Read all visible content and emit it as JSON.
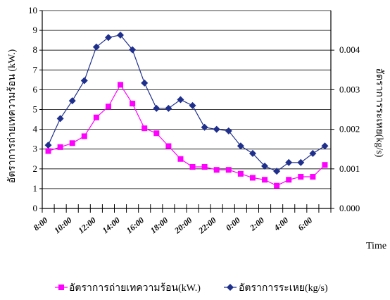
{
  "chart_data": {
    "type": "line",
    "categories": [
      "8:00",
      "9:00",
      "10:00",
      "11:00",
      "12:00",
      "13:00",
      "14:00",
      "15:00",
      "16:00",
      "17:00",
      "18:00",
      "19:00",
      "20:00",
      "21:00",
      "22:00",
      "23:00",
      "0:00",
      "1:00",
      "2:00",
      "3:00",
      "4:00",
      "5:00",
      "6:00",
      "7:00"
    ],
    "x_tick_labels": [
      "8:00",
      "10:00",
      "12:00",
      "14:00",
      "16:00",
      "18:00",
      "20:00",
      "22:00",
      "0:00",
      "2:00",
      "4:00",
      "6:00"
    ],
    "xlabel": "Time",
    "ylabel_left": "อัตราการถ่ายเทความร้อน (kW.)",
    "ylabel_right": "อัตราการระเหย(kg/s)",
    "ylim_left": [
      0,
      10
    ],
    "ylim_right": [
      0,
      0.005
    ],
    "yticks_left": [
      "0",
      "1",
      "2",
      "3",
      "4",
      "5",
      "6",
      "7",
      "8",
      "9",
      "10"
    ],
    "yticks_right": [
      "0.000",
      "0.001",
      "0.002",
      "0.003",
      "0.004"
    ],
    "grid": true,
    "legend_position": "bottom",
    "series": [
      {
        "name": "อัตราการถ่ายเทความร้อน(kW.)",
        "axis": "left",
        "color": "#ff00ff",
        "marker": "square",
        "values": [
          2.9,
          3.1,
          3.3,
          3.65,
          4.6,
          5.15,
          6.25,
          5.3,
          4.05,
          3.8,
          3.15,
          2.5,
          2.1,
          2.1,
          1.95,
          1.95,
          1.75,
          1.55,
          1.45,
          1.15,
          1.45,
          1.6,
          1.6,
          2.2
        ]
      },
      {
        "name": "อัตราการระเหย(kg/s)",
        "axis": "right",
        "color": "#1f2f8c",
        "marker": "diamond",
        "values": [
          0.0016,
          0.00227,
          0.00272,
          0.00323,
          0.00408,
          0.00432,
          0.00438,
          0.00401,
          0.00317,
          0.00253,
          0.00253,
          0.00275,
          0.0026,
          0.00205,
          0.002,
          0.00196,
          0.00158,
          0.00139,
          0.00107,
          0.00094,
          0.00116,
          0.00116,
          0.00139,
          0.00158
        ]
      }
    ]
  }
}
